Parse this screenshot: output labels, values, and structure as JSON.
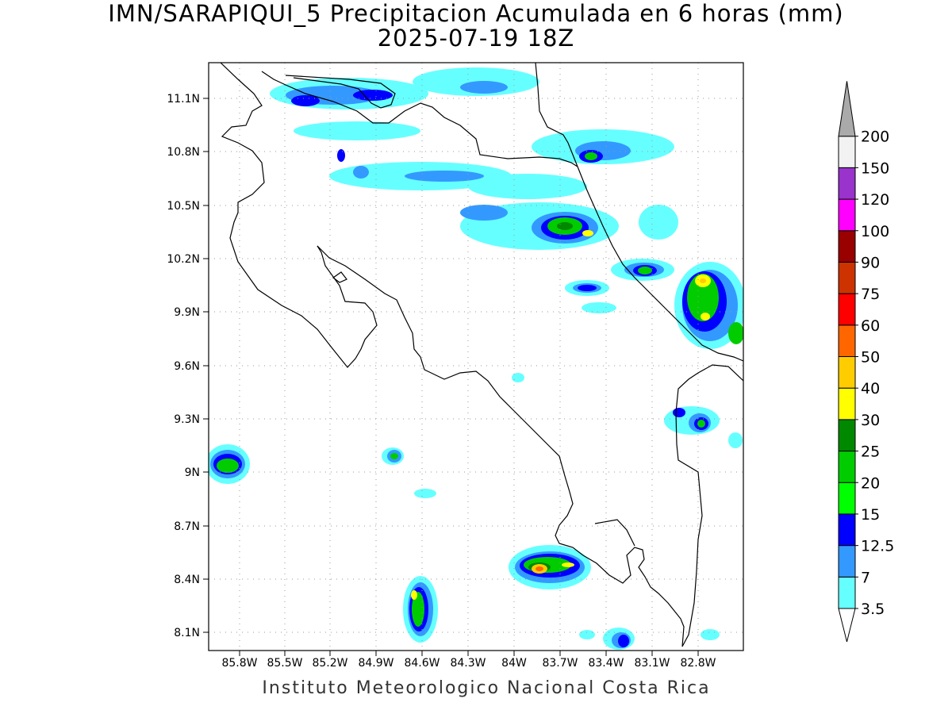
{
  "map": {
    "title": "IMN/SARAPIQUI_5 Precipitacion Acumulada en 6 horas (mm)",
    "subtitle": "2025-07-19 18Z",
    "credit": "Instituto Meteorologico Nacional Costa Rica",
    "lat_labels": [
      "11.1N",
      "10.8N",
      "10.5N",
      "10.2N",
      "9.9N",
      "9.6N",
      "9.3N",
      "9N",
      "8.7N",
      "8.4N",
      "8.1N"
    ],
    "lon_labels": [
      "85.8W",
      "85.5W",
      "85.2W",
      "84.9W",
      "84.6W",
      "84.3W",
      "84W",
      "83.7W",
      "83.4W",
      "83.1W",
      "82.8W"
    ],
    "grid": true
  },
  "legend": {
    "levels": [
      "3.5",
      "7",
      "12.5",
      "15",
      "20",
      "25",
      "30",
      "40",
      "50",
      "60",
      "75",
      "90",
      "100",
      "120",
      "150",
      "200"
    ],
    "colors": [
      "#66ffff",
      "#3399ff",
      "#0000ff",
      "#00ff00",
      "#00cc00",
      "#008800",
      "#ffff00",
      "#ffcc00",
      "#ff6600",
      "#ff0000",
      "#cc3300",
      "#990000",
      "#ff00ff",
      "#9933cc",
      "#f2f2f2",
      "#aaaaaa"
    ]
  }
}
